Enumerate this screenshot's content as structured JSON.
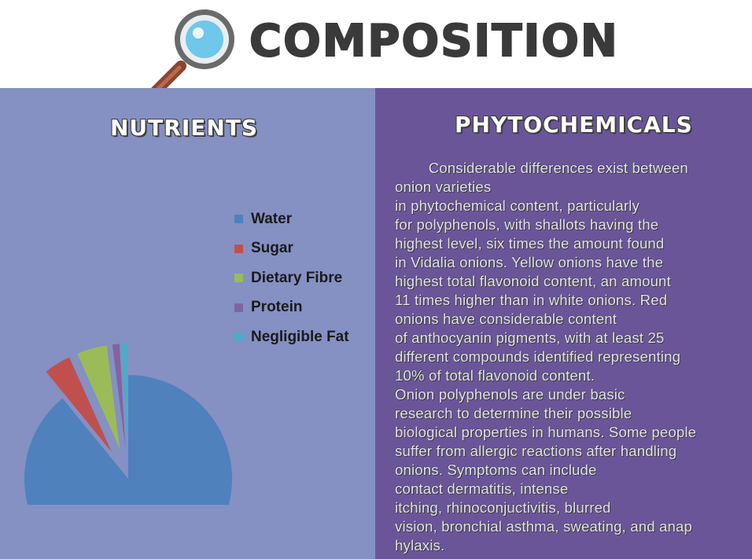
{
  "header": {
    "title": "COMPOSITION",
    "icon": "magnifying-glass-icon"
  },
  "nutrients": {
    "title": "NUTRIENTS",
    "legend": [
      {
        "label": "Water",
        "color": "#4f81bd"
      },
      {
        "label": "Sugar",
        "color": "#c0504d"
      },
      {
        "label": "Dietary Fibre",
        "color": "#9bbb59"
      },
      {
        "label": "Protein",
        "color": "#8064a2"
      },
      {
        "label": "Negligible Fat",
        "color": "#4bacc6"
      }
    ]
  },
  "chart_data": {
    "type": "pie",
    "exploded": true,
    "categories": [
      "Water",
      "Sugar",
      "Dietary Fibre",
      "Protein",
      "Negligible Fat"
    ],
    "values": [
      89.1,
      4.2,
      4.7,
      1.1,
      0.9
    ],
    "colors": [
      "#4f81bd",
      "#c0504d",
      "#9bbb59",
      "#8064a2",
      "#4bacc6"
    ],
    "legend_position": "right"
  },
  "phytochemicals": {
    "title": "PHYTOCHEMICALS",
    "lines": [
      "        Considerable differences exist between",
      "onion varieties",
      "in phytochemical content, particularly",
      "for polyphenols, with shallots having the",
      "highest level, six times the amount found",
      "in Vidalia onions. Yellow onions have the",
      "highest total flavonoid content, an amount",
      "11 times higher than in white onions. Red",
      "onions have considerable content",
      "of anthocyanin pigments, with at least 25",
      "different compounds identified representing",
      "10% of total flavonoid content.",
      "Onion polyphenols are under basic",
      "research to determine their possible",
      "biological properties in humans. Some people",
      "suffer from allergic reactions after handling",
      "onions. Symptoms can include",
      "contact dermatitis, intense",
      "itching, rhinoconjuctivitis, blurred",
      "vision, bronchial asthma, sweating, and anap",
      "hylaxis."
    ]
  }
}
